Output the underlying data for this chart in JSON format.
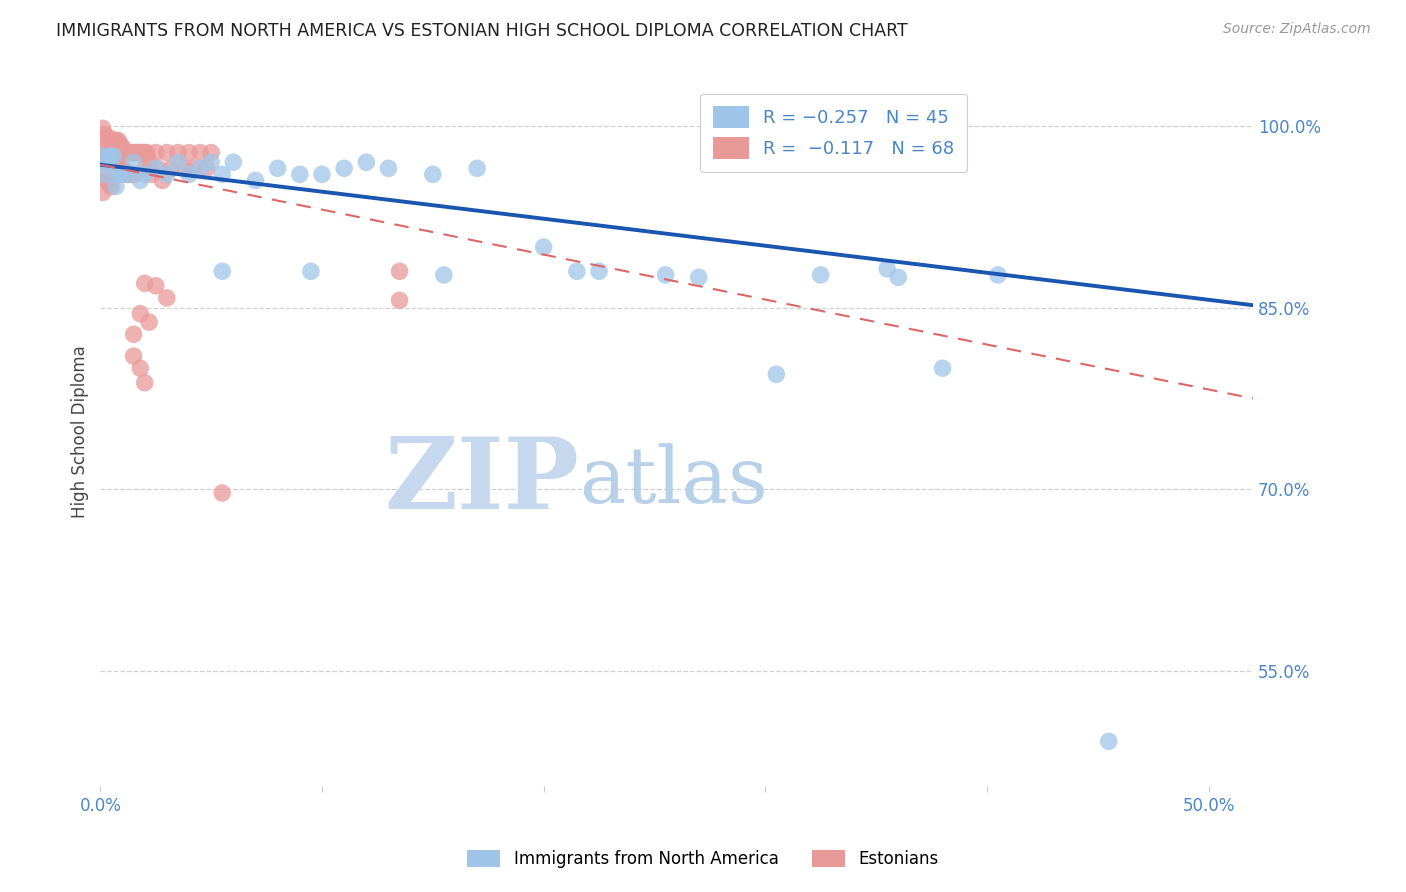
{
  "title": "IMMIGRANTS FROM NORTH AMERICA VS ESTONIAN HIGH SCHOOL DIPLOMA CORRELATION CHART",
  "source": "Source: ZipAtlas.com",
  "ylabel": "High School Diploma",
  "ytick_labels": [
    "100.0%",
    "85.0%",
    "70.0%",
    "55.0%"
  ],
  "ytick_values": [
    1.0,
    0.85,
    0.7,
    0.55
  ],
  "xlim": [
    0.0,
    0.52
  ],
  "ylim": [
    0.455,
    1.04
  ],
  "blue_color": "#9fc5e8",
  "pink_color": "#ea9999",
  "blue_line_color": "#1a56b0",
  "pink_line_color": "#e06666",
  "background_color": "#ffffff",
  "grid_color": "#d0d0d0",
  "axis_label_color": "#4a86c8",
  "title_color": "#222222",
  "watermark_zip_color": "#c5d8ee",
  "watermark_atlas_color": "#b8d0e8",
  "blue_scatter_x": [
    0.001,
    0.002,
    0.003,
    0.004,
    0.005,
    0.006,
    0.007,
    0.008,
    0.01,
    0.012,
    0.015,
    0.018,
    0.02,
    0.025,
    0.03,
    0.035,
    0.04,
    0.045,
    0.05,
    0.055,
    0.06,
    0.07,
    0.08,
    0.09,
    0.1,
    0.11,
    0.12,
    0.13,
    0.15,
    0.17,
    0.055,
    0.095,
    0.155,
    0.2,
    0.215,
    0.225,
    0.255,
    0.325,
    0.355,
    0.405,
    0.27,
    0.36,
    0.305,
    0.38,
    0.455
  ],
  "blue_scatter_y": [
    0.975,
    0.96,
    0.97,
    0.975,
    0.975,
    0.975,
    0.95,
    0.96,
    0.96,
    0.96,
    0.97,
    0.955,
    0.96,
    0.965,
    0.96,
    0.97,
    0.96,
    0.965,
    0.97,
    0.96,
    0.97,
    0.955,
    0.965,
    0.96,
    0.96,
    0.965,
    0.97,
    0.965,
    0.96,
    0.965,
    0.88,
    0.88,
    0.877,
    0.9,
    0.88,
    0.88,
    0.877,
    0.877,
    0.882,
    0.877,
    0.875,
    0.875,
    0.795,
    0.8,
    0.492
  ],
  "pink_scatter_x": [
    0.001,
    0.001,
    0.001,
    0.001,
    0.002,
    0.002,
    0.002,
    0.003,
    0.003,
    0.003,
    0.004,
    0.004,
    0.004,
    0.005,
    0.005,
    0.005,
    0.006,
    0.006,
    0.007,
    0.007,
    0.008,
    0.008,
    0.009,
    0.009,
    0.01,
    0.01,
    0.011,
    0.011,
    0.012,
    0.012,
    0.013,
    0.013,
    0.014,
    0.015,
    0.015,
    0.016,
    0.017,
    0.018,
    0.019,
    0.02,
    0.02,
    0.021,
    0.022,
    0.023,
    0.025,
    0.026,
    0.028,
    0.03,
    0.032,
    0.035,
    0.038,
    0.04,
    0.042,
    0.045,
    0.048,
    0.05,
    0.02,
    0.025,
    0.03,
    0.018,
    0.022,
    0.015,
    0.015,
    0.018,
    0.02,
    0.055,
    0.135,
    0.135
  ],
  "pink_scatter_y": [
    0.998,
    0.988,
    0.972,
    0.945,
    0.993,
    0.978,
    0.96,
    0.99,
    0.975,
    0.955,
    0.99,
    0.972,
    0.952,
    0.988,
    0.97,
    0.95,
    0.988,
    0.97,
    0.988,
    0.97,
    0.988,
    0.968,
    0.985,
    0.968,
    0.982,
    0.965,
    0.978,
    0.962,
    0.978,
    0.96,
    0.978,
    0.96,
    0.978,
    0.978,
    0.96,
    0.978,
    0.978,
    0.978,
    0.978,
    0.978,
    0.965,
    0.978,
    0.97,
    0.96,
    0.978,
    0.965,
    0.955,
    0.978,
    0.965,
    0.978,
    0.965,
    0.978,
    0.965,
    0.978,
    0.965,
    0.978,
    0.87,
    0.868,
    0.858,
    0.845,
    0.838,
    0.828,
    0.81,
    0.8,
    0.788,
    0.697,
    0.88,
    0.856
  ],
  "blue_trend_x0": 0.0,
  "blue_trend_y0": 0.968,
  "blue_trend_x1": 0.52,
  "blue_trend_y1": 0.852,
  "pink_trend_x0": 0.0,
  "pink_trend_y0": 0.968,
  "pink_trend_x1": 0.52,
  "pink_trend_y1": 0.775
}
